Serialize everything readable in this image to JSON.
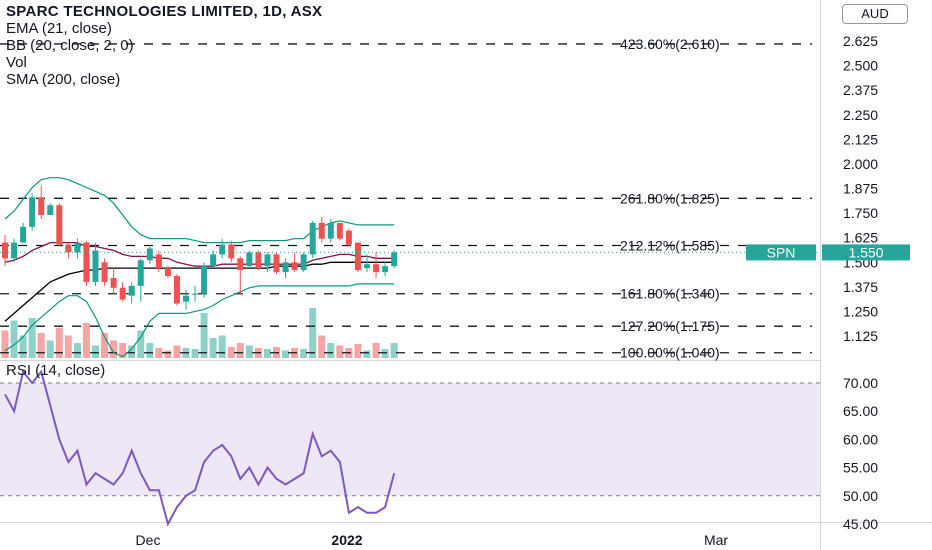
{
  "header": {
    "title": "SPARC TECHNOLOGIES LIMITED, 1D, ASX",
    "indicators": [
      "EMA (21, close)",
      "BB (20, close, 2, 0)",
      "Vol",
      "SMA (200, close)"
    ],
    "currency": "AUD"
  },
  "rsi_panel": {
    "label": "RSI (14, close)"
  },
  "price_tags": {
    "symbol": "SPN",
    "last": "1.550"
  },
  "colors": {
    "up": "#26a69a",
    "down": "#ef5350",
    "vol_up": "#8fd0c9",
    "vol_down": "#f5a5a3",
    "rsi_line": "#7e57c2",
    "rsi_band": "#ede7f6",
    "bb_line": "#089981",
    "ema_line": "#880e4f",
    "sma_line": "#000000"
  },
  "chart_data": {
    "type": "candlestick",
    "price_axis": {
      "min": 1.05,
      "max": 2.7,
      "ticks": [
        "2.625",
        "2.500",
        "2.375",
        "2.250",
        "2.125",
        "2.000",
        "1.875",
        "1.750",
        "1.625",
        "1.500",
        "1.375",
        "1.250",
        "1.125"
      ]
    },
    "fib_levels": [
      {
        "label": "423.60%(2.610)",
        "value": 2.61
      },
      {
        "label": "261.80%(1.825)",
        "value": 1.825
      },
      {
        "label": "212.12%(1.585)",
        "value": 1.585
      },
      {
        "label": "161.80%(1.340)",
        "value": 1.34
      },
      {
        "label": "127.20%(1.175)",
        "value": 1.175
      },
      {
        "label": "100.00%(1.040)",
        "value": 1.04
      }
    ],
    "x_labels": [
      "Dec",
      "2022",
      "Mar"
    ],
    "candles": [
      {
        "o": 1.6,
        "h": 1.64,
        "l": 1.48,
        "c": 1.52
      },
      {
        "o": 1.52,
        "h": 1.62,
        "l": 1.5,
        "c": 1.6
      },
      {
        "o": 1.6,
        "h": 1.7,
        "l": 1.6,
        "c": 1.68
      },
      {
        "o": 1.68,
        "h": 1.85,
        "l": 1.66,
        "c": 1.83
      },
      {
        "o": 1.83,
        "h": 1.89,
        "l": 1.72,
        "c": 1.74
      },
      {
        "o": 1.74,
        "h": 1.8,
        "l": 1.74,
        "c": 1.79
      },
      {
        "o": 1.79,
        "h": 1.8,
        "l": 1.58,
        "c": 1.59
      },
      {
        "o": 1.59,
        "h": 1.6,
        "l": 1.52,
        "c": 1.55
      },
      {
        "o": 1.55,
        "h": 1.62,
        "l": 1.52,
        "c": 1.6
      },
      {
        "o": 1.6,
        "h": 1.61,
        "l": 1.38,
        "c": 1.4
      },
      {
        "o": 1.4,
        "h": 1.6,
        "l": 1.38,
        "c": 1.56
      },
      {
        "o": 1.5,
        "h": 1.52,
        "l": 1.38,
        "c": 1.4
      },
      {
        "o": 1.42,
        "h": 1.47,
        "l": 1.34,
        "c": 1.37
      },
      {
        "o": 1.37,
        "h": 1.4,
        "l": 1.3,
        "c": 1.31
      },
      {
        "o": 1.33,
        "h": 1.4,
        "l": 1.29,
        "c": 1.38
      },
      {
        "o": 1.38,
        "h": 1.52,
        "l": 1.3,
        "c": 1.51
      },
      {
        "o": 1.51,
        "h": 1.59,
        "l": 1.49,
        "c": 1.57
      },
      {
        "o": 1.54,
        "h": 1.56,
        "l": 1.45,
        "c": 1.47
      },
      {
        "o": 1.47,
        "h": 1.48,
        "l": 1.42,
        "c": 1.43
      },
      {
        "o": 1.43,
        "h": 1.44,
        "l": 1.28,
        "c": 1.29
      },
      {
        "o": 1.3,
        "h": 1.36,
        "l": 1.26,
        "c": 1.33
      },
      {
        "o": 1.34,
        "h": 1.38,
        "l": 1.3,
        "c": 1.34
      },
      {
        "o": 1.34,
        "h": 1.5,
        "l": 1.32,
        "c": 1.48
      },
      {
        "o": 1.48,
        "h": 1.56,
        "l": 1.47,
        "c": 1.54
      },
      {
        "o": 1.54,
        "h": 1.62,
        "l": 1.52,
        "c": 1.59
      },
      {
        "o": 1.59,
        "h": 1.61,
        "l": 1.5,
        "c": 1.52
      },
      {
        "o": 1.52,
        "h": 1.53,
        "l": 1.34,
        "c": 1.46
      },
      {
        "o": 1.48,
        "h": 1.56,
        "l": 1.47,
        "c": 1.55
      },
      {
        "o": 1.55,
        "h": 1.56,
        "l": 1.46,
        "c": 1.47
      },
      {
        "o": 1.48,
        "h": 1.55,
        "l": 1.45,
        "c": 1.54
      },
      {
        "o": 1.54,
        "h": 1.55,
        "l": 1.44,
        "c": 1.45
      },
      {
        "o": 1.45,
        "h": 1.52,
        "l": 1.42,
        "c": 1.5
      },
      {
        "o": 1.5,
        "h": 1.55,
        "l": 1.45,
        "c": 1.46
      },
      {
        "o": 1.46,
        "h": 1.55,
        "l": 1.45,
        "c": 1.54
      },
      {
        "o": 1.54,
        "h": 1.71,
        "l": 1.52,
        "c": 1.7
      },
      {
        "o": 1.7,
        "h": 1.73,
        "l": 1.6,
        "c": 1.62
      },
      {
        "o": 1.62,
        "h": 1.72,
        "l": 1.6,
        "c": 1.7
      },
      {
        "o": 1.7,
        "h": 1.7,
        "l": 1.61,
        "c": 1.62
      },
      {
        "o": 1.66,
        "h": 1.67,
        "l": 1.58,
        "c": 1.59
      },
      {
        "o": 1.6,
        "h": 1.6,
        "l": 1.45,
        "c": 1.46
      },
      {
        "o": 1.47,
        "h": 1.54,
        "l": 1.45,
        "c": 1.49
      },
      {
        "o": 1.49,
        "h": 1.55,
        "l": 1.42,
        "c": 1.45
      },
      {
        "o": 1.45,
        "h": 1.5,
        "l": 1.43,
        "c": 1.48
      },
      {
        "o": 1.48,
        "h": 1.56,
        "l": 1.47,
        "c": 1.55
      }
    ],
    "volume_rel": [
      0.55,
      0.75,
      0.45,
      0.8,
      0.5,
      0.35,
      0.6,
      0.45,
      0.3,
      0.7,
      0.25,
      0.5,
      0.35,
      0.3,
      0.25,
      0.55,
      0.3,
      0.2,
      0.15,
      0.25,
      0.2,
      0.18,
      0.9,
      0.4,
      0.45,
      0.22,
      0.3,
      0.25,
      0.2,
      0.18,
      0.22,
      0.15,
      0.2,
      0.18,
      1.0,
      0.45,
      0.3,
      0.25,
      0.2,
      0.28,
      0.15,
      0.3,
      0.18,
      0.3
    ],
    "ema21": [
      1.5,
      1.51,
      1.53,
      1.56,
      1.58,
      1.6,
      1.6,
      1.6,
      1.6,
      1.58,
      1.58,
      1.57,
      1.56,
      1.54,
      1.53,
      1.53,
      1.53,
      1.52,
      1.52,
      1.5,
      1.49,
      1.48,
      1.48,
      1.48,
      1.49,
      1.49,
      1.49,
      1.49,
      1.49,
      1.49,
      1.49,
      1.49,
      1.49,
      1.49,
      1.51,
      1.52,
      1.53,
      1.54,
      1.54,
      1.53,
      1.53,
      1.52,
      1.52,
      1.52
    ],
    "sma200": [
      1.2,
      1.24,
      1.28,
      1.32,
      1.36,
      1.4,
      1.42,
      1.44,
      1.45,
      1.46,
      1.46,
      1.47,
      1.47,
      1.47,
      1.47,
      1.47,
      1.47,
      1.47,
      1.47,
      1.47,
      1.47,
      1.47,
      1.47,
      1.47,
      1.47,
      1.47,
      1.47,
      1.47,
      1.47,
      1.47,
      1.48,
      1.48,
      1.48,
      1.48,
      1.49,
      1.49,
      1.5,
      1.5,
      1.5,
      1.5,
      1.5,
      1.5,
      1.5,
      1.5
    ],
    "bb_upper": [
      1.72,
      1.76,
      1.82,
      1.88,
      1.92,
      1.93,
      1.93,
      1.92,
      1.9,
      1.88,
      1.86,
      1.84,
      1.8,
      1.74,
      1.68,
      1.64,
      1.62,
      1.62,
      1.62,
      1.62,
      1.62,
      1.61,
      1.6,
      1.6,
      1.6,
      1.6,
      1.6,
      1.61,
      1.61,
      1.61,
      1.61,
      1.61,
      1.62,
      1.62,
      1.66,
      1.68,
      1.7,
      1.71,
      1.7,
      1.69,
      1.69,
      1.69,
      1.69,
      1.69
    ],
    "bb_lower": [
      1.05,
      1.08,
      1.12,
      1.18,
      1.22,
      1.26,
      1.3,
      1.33,
      1.33,
      1.3,
      1.22,
      1.12,
      1.04,
      1.02,
      1.06,
      1.12,
      1.2,
      1.24,
      1.24,
      1.24,
      1.24,
      1.25,
      1.26,
      1.28,
      1.31,
      1.33,
      1.35,
      1.37,
      1.38,
      1.38,
      1.38,
      1.38,
      1.38,
      1.38,
      1.38,
      1.38,
      1.38,
      1.38,
      1.38,
      1.39,
      1.39,
      1.39,
      1.39,
      1.39
    ],
    "rsi_axis": {
      "min": 44,
      "max": 73,
      "ticks": [
        "70.00",
        "65.00",
        "60.00",
        "55.00",
        "50.00",
        "45.00"
      ],
      "upper": 70,
      "lower": 50
    },
    "rsi": [
      68,
      65,
      72,
      70,
      72,
      66,
      60,
      56,
      58,
      52,
      54,
      53,
      52,
      54,
      58,
      54,
      51,
      51,
      45,
      48,
      50,
      51,
      56,
      58,
      59,
      57,
      53,
      55,
      52,
      55,
      53,
      52,
      53,
      54,
      61,
      57,
      58,
      56,
      47,
      48,
      47,
      47,
      48,
      54
    ]
  }
}
